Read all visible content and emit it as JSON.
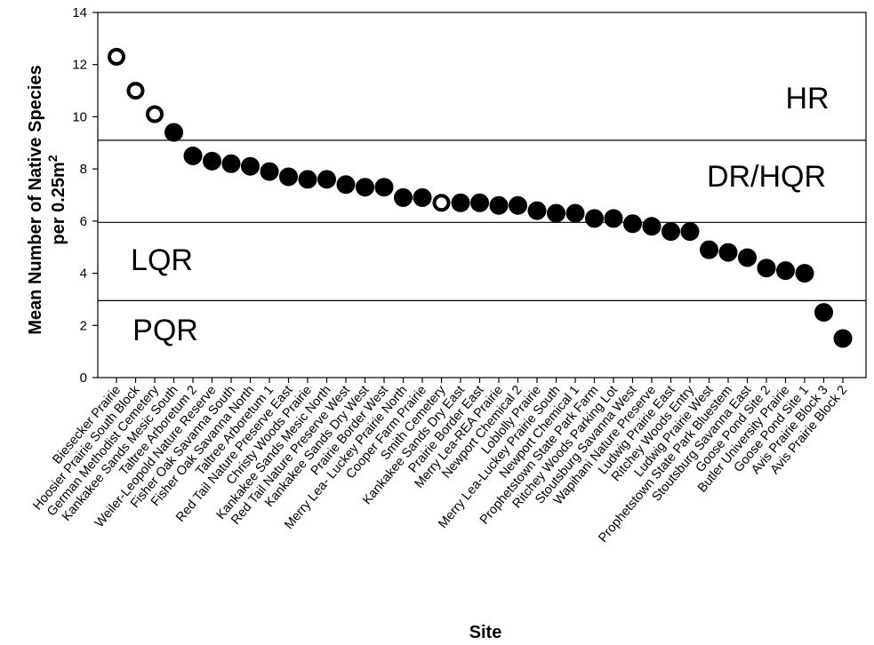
{
  "chart_data": {
    "type": "scatter",
    "xlabel": "Site",
    "ylabel_line1": "Mean Number of Native Species",
    "ylabel_line2": "per 0.25m",
    "ylabel_sup": "2",
    "ylim": [
      0,
      14
    ],
    "yticks": [
      0,
      2,
      4,
      6,
      8,
      10,
      12,
      14
    ],
    "grid": false,
    "categories": [
      "Biesecker Prairie",
      "Hoosier Prairie South Block",
      "German Methodist Cemetery",
      "Kankakee Sands Mesic South",
      "Taltree Arboretum 2",
      "Weiler-Leopold Nature Reserve",
      "Fisher Oak Savanna South",
      "Fisher Oak Savanna North",
      "Taltree Arboretum 1",
      "Red Tail Nature Preserve East",
      "Christy Woods Prairie",
      "Kankakee Sands Mesic North",
      "Red Tail Nature Preserve West",
      "Kankakee Sands Dry West",
      "Prairie Border West",
      "Merry Lea- Luckey Prairie North",
      "Cooper Farm Prairie",
      "Smith Cemetery",
      "Kankakee Sands Dry East",
      "Prairie Border East",
      "Merry Lea-REA Prairie",
      "Newport Chemical 2",
      "Loblolly Prairie",
      "Merry Lea-Luckey Prairie South",
      "Newport Chemical 1",
      "Prophetstown State Park Farm",
      "Ritchey Woods Parking Lot",
      "Stoutsburg Savanna West",
      "Wapihani Nature Preserve",
      "Ludwig Prairie East",
      "Ritchey Woods Entry",
      "Ludwig Prairie West",
      "Prophetstown State Park Bluestem",
      "Stoutsburg Savanna East",
      "Goose Pond Site 2",
      "Butler University Prairie",
      "Goose Pond Site 1",
      "Avis Prairie Block 3",
      "Avis Prairie Block 2"
    ],
    "series": [
      {
        "values": [
          12.3,
          11.0,
          10.1,
          9.4,
          8.5,
          8.3,
          8.2,
          8.1,
          7.9,
          7.7,
          7.6,
          7.6,
          7.4,
          7.3,
          7.3,
          6.9,
          6.9,
          6.7,
          6.7,
          6.7,
          6.6,
          6.6,
          6.4,
          6.3,
          6.3,
          6.1,
          6.1,
          5.9,
          5.8,
          5.6,
          5.6,
          4.9,
          4.8,
          4.6,
          4.2,
          4.1,
          4.0,
          2.5,
          1.5
        ],
        "open_marker": [
          true,
          true,
          true,
          false,
          false,
          false,
          false,
          false,
          false,
          false,
          false,
          false,
          false,
          false,
          false,
          false,
          false,
          true,
          false,
          false,
          false,
          false,
          false,
          false,
          false,
          false,
          false,
          false,
          false,
          false,
          false,
          false,
          false,
          false,
          false,
          false,
          false,
          false,
          false
        ]
      }
    ],
    "thresholds": [
      9.1,
      5.95,
      2.95
    ],
    "regions": [
      {
        "label": "HR",
        "at": 10.7
      },
      {
        "label": "DR/HQR",
        "at": 7.7
      },
      {
        "label": "LQR",
        "at": 4.5
      },
      {
        "label": "PQR",
        "at": 1.8
      }
    ]
  }
}
